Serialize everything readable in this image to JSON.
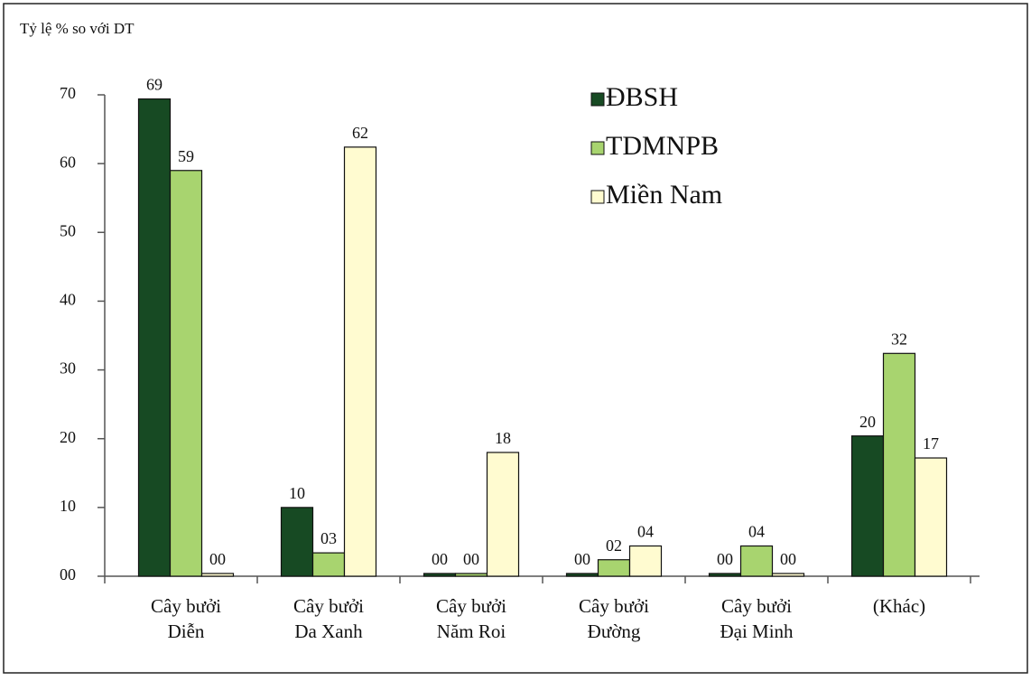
{
  "chart_data": {
    "type": "bar",
    "y_axis_label": "Tỷ lệ % so với DT",
    "categories": [
      [
        "Cây bưởi",
        "Diễn"
      ],
      [
        "Cây bưởi",
        "Da Xanh"
      ],
      [
        "Cây bưởi",
        "Năm Roi"
      ],
      [
        "Cây bưởi",
        "Đường"
      ],
      [
        "Cây bưởi",
        "Đại Minh"
      ],
      [
        "(Khác)"
      ]
    ],
    "series": [
      {
        "name": "ĐBSH",
        "color": "#174a23",
        "values": [
          69.4,
          10,
          0.4,
          0.4,
          0.4,
          20.4
        ],
        "value_labels": [
          "69",
          "10",
          "00",
          "00",
          "00",
          "20"
        ]
      },
      {
        "name": "TDMNPB",
        "color": "#a8d46f",
        "values": [
          59,
          3.4,
          0.4,
          2.4,
          4.4,
          32.4
        ],
        "value_labels": [
          "59",
          "03",
          "00",
          "02",
          "04",
          "32"
        ]
      },
      {
        "name": "Miền Nam",
        "color": "#fffbd0",
        "values": [
          0.4,
          62.4,
          18,
          4.4,
          0.4,
          17.2
        ],
        "value_labels": [
          "00",
          "62",
          "18",
          "04",
          "00",
          "17"
        ]
      }
    ],
    "ylim": [
      0,
      70
    ],
    "yticks": [
      {
        "value": 0,
        "label": "00"
      },
      10,
      20,
      30,
      40,
      50,
      60,
      70
    ],
    "legend": "upper right"
  }
}
